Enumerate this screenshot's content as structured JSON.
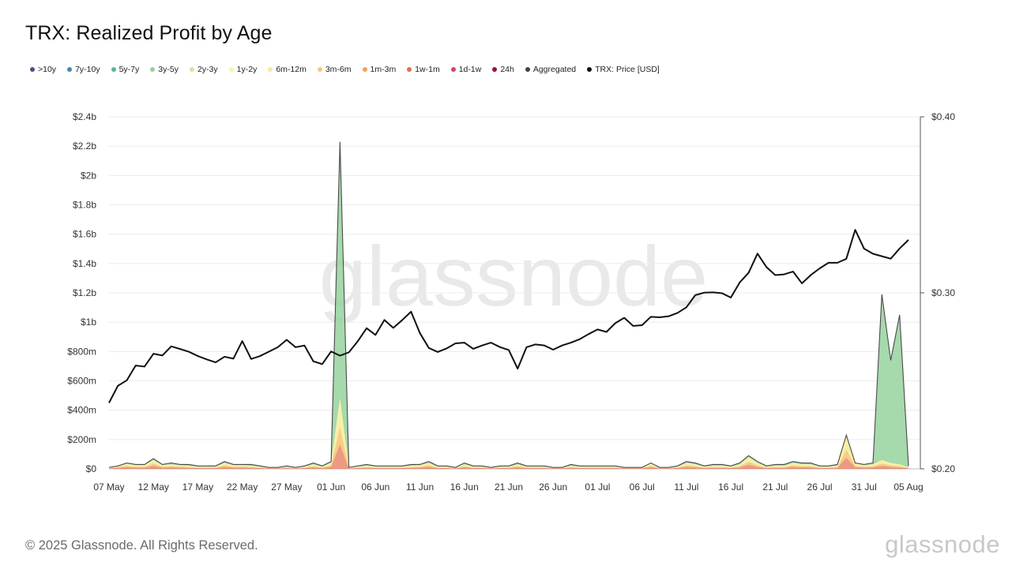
{
  "title": "TRX: Realized Profit by Age",
  "legend": [
    {
      "label": ">10y",
      "color": "#4a4f8f"
    },
    {
      "label": "7y-10y",
      "color": "#4b86b0"
    },
    {
      "label": "5y-7y",
      "color": "#58b3a6"
    },
    {
      "label": "3y-5y",
      "color": "#97d29e"
    },
    {
      "label": "2y-3y",
      "color": "#d6e6a2"
    },
    {
      "label": "1y-2y",
      "color": "#f5f4b0"
    },
    {
      "label": "6m-12m",
      "color": "#fbe7a0"
    },
    {
      "label": "3m-6m",
      "color": "#f8c678"
    },
    {
      "label": "1m-3m",
      "color": "#f2a15a"
    },
    {
      "label": "1w-1m",
      "color": "#e56f4e"
    },
    {
      "label": "1d-1w",
      "color": "#d8445a"
    },
    {
      "label": "24h",
      "color": "#9c1239"
    },
    {
      "label": "Aggregated",
      "color": "#444444"
    },
    {
      "label": "TRX: Price [USD]",
      "color": "#111111"
    }
  ],
  "footer": "© 2025 Glassnode. All Rights Reserved.",
  "brand": "glassnode",
  "watermark": "glassnode",
  "chart_data": {
    "type": "area",
    "x_start": "2025-05-07",
    "x_end": "2025-08-05",
    "x_ticks": [
      "07 May",
      "12 May",
      "17 May",
      "22 May",
      "27 May",
      "01 Jun",
      "06 Jun",
      "11 Jun",
      "16 Jun",
      "21 Jun",
      "26 Jun",
      "01 Jul",
      "06 Jul",
      "11 Jul",
      "16 Jul",
      "21 Jul",
      "26 Jul",
      "31 Jul",
      "05 Aug"
    ],
    "y_left": {
      "ticks": [
        "$0",
        "$200m",
        "$400m",
        "$600m",
        "$800m",
        "$1b",
        "$1.2b",
        "$1.4b",
        "$1.6b",
        "$1.8b",
        "$2b",
        "$2.2b",
        "$2.4b"
      ],
      "range": [
        0,
        2.4
      ]
    },
    "y_right": {
      "ticks": [
        "$0.20",
        "$0.30",
        "$0.40"
      ],
      "range": [
        0.2,
        0.4
      ]
    },
    "grid": true,
    "price": [
      0.2375,
      0.2472,
      0.2503,
      0.2587,
      0.2581,
      0.2654,
      0.2644,
      0.2696,
      0.2681,
      0.2665,
      0.2641,
      0.2622,
      0.2605,
      0.2637,
      0.2626,
      0.2726,
      0.2624,
      0.2641,
      0.2666,
      0.2691,
      0.2733,
      0.2691,
      0.2701,
      0.2611,
      0.2595,
      0.2667,
      0.2643,
      0.2662,
      0.2725,
      0.2799,
      0.2761,
      0.2846,
      0.2801,
      0.2845,
      0.2893,
      0.2771,
      0.2687,
      0.2664,
      0.2684,
      0.2713,
      0.2717,
      0.2682,
      0.2701,
      0.2717,
      0.2692,
      0.2675,
      0.2569,
      0.2691,
      0.2707,
      0.2701,
      0.2677,
      0.2701,
      0.2717,
      0.2737,
      0.2766,
      0.2792,
      0.2778,
      0.2828,
      0.2858,
      0.2812,
      0.2816,
      0.2864,
      0.2861,
      0.2867,
      0.2886,
      0.2918,
      0.2987,
      0.3001,
      0.3003,
      0.2998,
      0.2973,
      0.3059,
      0.3114,
      0.3223,
      0.3147,
      0.3101,
      0.3105,
      0.3121,
      0.3054,
      0.3101,
      0.3139,
      0.3171,
      0.3171,
      0.3193,
      0.3358,
      0.3251,
      0.3222,
      0.3208,
      0.3194,
      0.3252,
      0.3301
    ],
    "aggregated": [
      0.01,
      0.02,
      0.04,
      0.03,
      0.03,
      0.07,
      0.03,
      0.04,
      0.03,
      0.03,
      0.02,
      0.02,
      0.02,
      0.05,
      0.03,
      0.03,
      0.03,
      0.02,
      0.01,
      0.01,
      0.02,
      0.01,
      0.02,
      0.04,
      0.02,
      0.05,
      2.23,
      0.01,
      0.02,
      0.03,
      0.02,
      0.02,
      0.02,
      0.02,
      0.03,
      0.03,
      0.05,
      0.02,
      0.02,
      0.01,
      0.04,
      0.02,
      0.02,
      0.01,
      0.02,
      0.02,
      0.04,
      0.02,
      0.02,
      0.02,
      0.01,
      0.01,
      0.03,
      0.02,
      0.02,
      0.02,
      0.02,
      0.02,
      0.01,
      0.01,
      0.01,
      0.04,
      0.01,
      0.01,
      0.02,
      0.05,
      0.04,
      0.02,
      0.03,
      0.03,
      0.02,
      0.04,
      0.09,
      0.05,
      0.02,
      0.03,
      0.03,
      0.05,
      0.04,
      0.04,
      0.02,
      0.02,
      0.03,
      0.23,
      0.04,
      0.03,
      0.04,
      1.19,
      0.74,
      1.05,
      0.02
    ],
    "young_stack": [
      0.01,
      0.02,
      0.035,
      0.025,
      0.025,
      0.06,
      0.025,
      0.03,
      0.025,
      0.02,
      0.015,
      0.015,
      0.015,
      0.04,
      0.025,
      0.025,
      0.02,
      0.015,
      0.01,
      0.01,
      0.015,
      0.01,
      0.015,
      0.03,
      0.015,
      0.04,
      0.48,
      0.01,
      0.015,
      0.02,
      0.015,
      0.015,
      0.015,
      0.015,
      0.02,
      0.025,
      0.04,
      0.015,
      0.015,
      0.01,
      0.03,
      0.015,
      0.015,
      0.01,
      0.015,
      0.015,
      0.03,
      0.015,
      0.015,
      0.015,
      0.01,
      0.01,
      0.02,
      0.015,
      0.015,
      0.015,
      0.015,
      0.015,
      0.01,
      0.01,
      0.01,
      0.035,
      0.01,
      0.01,
      0.015,
      0.04,
      0.03,
      0.015,
      0.02,
      0.02,
      0.015,
      0.03,
      0.08,
      0.04,
      0.015,
      0.02,
      0.02,
      0.04,
      0.03,
      0.03,
      0.015,
      0.015,
      0.02,
      0.22,
      0.035,
      0.025,
      0.03,
      0.06,
      0.04,
      0.03,
      0.01
    ]
  }
}
